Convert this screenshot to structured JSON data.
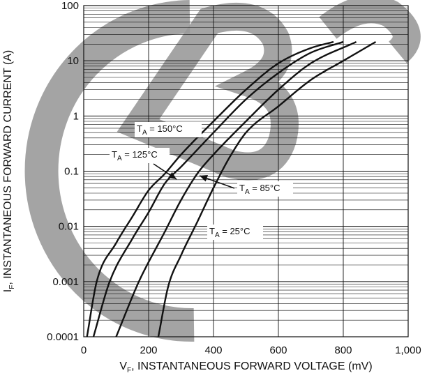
{
  "chart_data": {
    "type": "line",
    "xlabel": {
      "main": "V",
      "sub": "F",
      "rest": ", INSTANTANEOUS FORWARD VOLTAGE (mV)"
    },
    "ylabel": {
      "main": "I",
      "sub": "F",
      "rest": ", INSTANTANEOUS FORWARD CURRENT (A)"
    },
    "xlim": [
      0,
      1000
    ],
    "ylim": [
      0.0001,
      100
    ],
    "y_scale": "log",
    "grid": true,
    "x_ticks": [
      {
        "value": 0,
        "label": "0"
      },
      {
        "value": 200,
        "label": "200"
      },
      {
        "value": 400,
        "label": "400"
      },
      {
        "value": 600,
        "label": "600"
      },
      {
        "value": 800,
        "label": "800"
      },
      {
        "value": 1000,
        "label": "1,000"
      }
    ],
    "y_ticks": [
      {
        "value": 0.0001,
        "label": "0.0001"
      },
      {
        "value": 0.001,
        "label": "0.001"
      },
      {
        "value": 0.01,
        "label": "0.01"
      },
      {
        "value": 0.1,
        "label": "0.1"
      },
      {
        "value": 1,
        "label": "1"
      },
      {
        "value": 10,
        "label": "10"
      },
      {
        "value": 100,
        "label": "100"
      }
    ],
    "series": [
      {
        "label": {
          "main": "T",
          "sub": "A",
          "rest": " = 150°C"
        },
        "x": [
          10,
          40,
          100,
          150,
          200,
          250,
          300,
          400,
          500,
          600,
          700,
          770
        ],
        "y": [
          0.0001,
          0.001,
          0.005,
          0.015,
          0.045,
          0.09,
          0.2,
          0.8,
          3,
          9,
          17,
          22
        ]
      },
      {
        "label": {
          "main": "T",
          "sub": "A",
          "rest": " = 125°C"
        },
        "x": [
          30,
          80,
          150,
          200,
          250,
          300,
          400,
          500,
          600,
          700,
          800
        ],
        "y": [
          0.0001,
          0.001,
          0.006,
          0.018,
          0.06,
          0.12,
          0.5,
          2,
          6,
          14,
          22
        ]
      },
      {
        "label": {
          "main": "T",
          "sub": "A",
          "rest": " = 85°C"
        },
        "x": [
          100,
          170,
          250,
          300,
          350,
          400,
          500,
          600,
          700,
          840
        ],
        "y": [
          0.0001,
          0.001,
          0.008,
          0.03,
          0.09,
          0.2,
          0.8,
          3,
          9,
          22
        ]
      },
      {
        "label": {
          "main": "T",
          "sub": "A",
          "rest": " = 25°C"
        },
        "x": [
          230,
          260,
          300,
          350,
          400,
          450,
          500,
          600,
          700,
          800,
          900
        ],
        "y": [
          0.0001,
          0.0008,
          0.003,
          0.012,
          0.05,
          0.18,
          0.5,
          1.5,
          4.5,
          10,
          22
        ]
      }
    ],
    "annotations": [
      {
        "series": 0,
        "arrow": false
      },
      {
        "series": 1,
        "arrow": true
      },
      {
        "series": 2,
        "arrow": true
      },
      {
        "series": 3,
        "arrow": false
      }
    ],
    "colors": {
      "line": "#111111",
      "grid": "#111111",
      "watermark": "#9a9a9a"
    }
  }
}
